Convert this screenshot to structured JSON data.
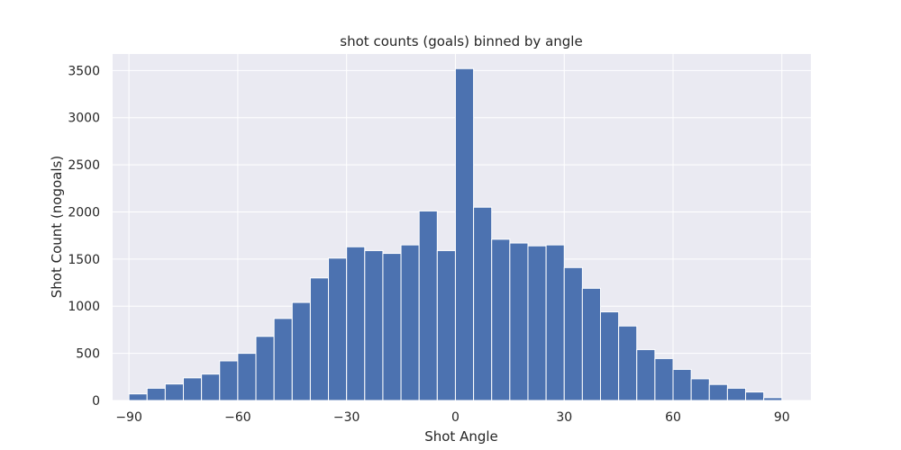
{
  "chart_data": {
    "type": "bar",
    "title": "shot counts (goals) binned by angle",
    "xlabel": "Shot Angle",
    "ylabel": "Shot Count (nogoals)",
    "xlim": [
      -94.5,
      98
    ],
    "ylim": [
      0,
      3675
    ],
    "xticks": [
      -90,
      -60,
      -30,
      0,
      30,
      60,
      90
    ],
    "xtick_labels": [
      "−90",
      "−60",
      "−30",
      "0",
      "30",
      "60",
      "90"
    ],
    "yticks": [
      0,
      500,
      1000,
      1500,
      2000,
      2500,
      3000,
      3500
    ],
    "ytick_labels": [
      "0",
      "500",
      "1000",
      "1500",
      "2000",
      "2500",
      "3000",
      "3500"
    ],
    "grid": true,
    "bin_edges": [
      -90,
      -85,
      -80,
      -75,
      -70,
      -65,
      -60,
      -55,
      -50,
      -45,
      -40,
      -35,
      -30,
      -25,
      -20,
      -15,
      -10,
      -5,
      0,
      5,
      10,
      15,
      20,
      25,
      30,
      35,
      40,
      45,
      50,
      55,
      60,
      65,
      70,
      75,
      80,
      85,
      90
    ],
    "values": [
      70,
      130,
      175,
      240,
      280,
      420,
      500,
      680,
      870,
      1040,
      1300,
      1510,
      1630,
      1590,
      1560,
      1650,
      2010,
      1590,
      3520,
      2050,
      1710,
      1670,
      1640,
      1650,
      1410,
      1190,
      940,
      790,
      540,
      445,
      330,
      230,
      170,
      130,
      90,
      30
    ],
    "colors": {
      "bar": "#4c72b0",
      "background": "#eaeaf2",
      "grid": "#ffffff"
    }
  }
}
